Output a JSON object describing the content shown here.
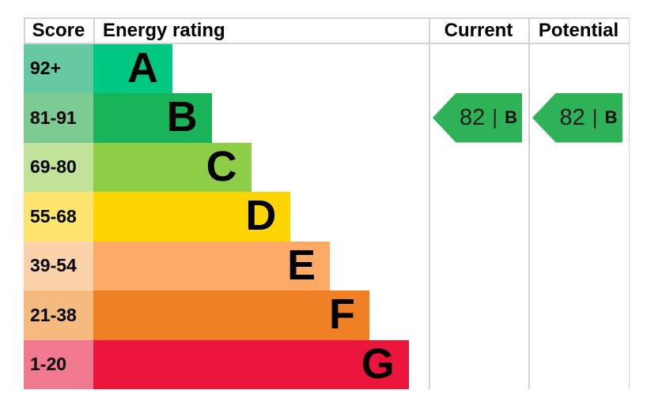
{
  "header": {
    "score": "Score",
    "energy_rating": "Energy rating",
    "current": "Current",
    "potential": "Potential"
  },
  "bands": [
    {
      "grade": "A",
      "score": "92+",
      "bar_color": "#00c781",
      "score_color": "#66c9a1"
    },
    {
      "grade": "B",
      "score": "81-91",
      "bar_color": "#19b459",
      "score_color": "#7ccb92"
    },
    {
      "grade": "C",
      "score": "69-80",
      "bar_color": "#8dce46",
      "score_color": "#c1e299"
    },
    {
      "grade": "D",
      "score": "55-68",
      "bar_color": "#ffd500",
      "score_color": "#fce46e"
    },
    {
      "grade": "E",
      "score": "39-54",
      "bar_color": "#fcaa65",
      "score_color": "#fcd2ab"
    },
    {
      "grade": "F",
      "score": "21-38",
      "bar_color": "#ef8023",
      "score_color": "#f5ba7d"
    },
    {
      "grade": "G",
      "score": "1-20",
      "bar_color": "#e9153b",
      "score_color": "#f1798f"
    }
  ],
  "current": {
    "value": "82",
    "separator": "|",
    "grade": "B",
    "arrow_color": "#2db258"
  },
  "potential": {
    "value": "82",
    "separator": "|",
    "grade": "B",
    "arrow_color": "#2db258"
  },
  "style": {
    "border_color": "#d2d2d2",
    "text_color": "#000000"
  },
  "chart_data": {
    "type": "bar",
    "title": "Energy rating",
    "categories": [
      "A",
      "B",
      "C",
      "D",
      "E",
      "F",
      "G"
    ],
    "band_score_ranges": {
      "A": "92+",
      "B": "81-91",
      "C": "69-80",
      "D": "55-68",
      "E": "39-54",
      "F": "21-38",
      "G": "1-20"
    },
    "band_colors": [
      "#00c781",
      "#19b459",
      "#8dce46",
      "#ffd500",
      "#fcaa65",
      "#ef8023",
      "#e9153b"
    ],
    "current_rating": {
      "score": 82,
      "grade": "B"
    },
    "potential_rating": {
      "score": 82,
      "grade": "B"
    },
    "legend_position": "none",
    "layout": "EPC stepped-band ladder; bar length increases by fixed step from A (shortest) to G (longest); current and potential shown as left-pointing green arrows aligned with band B"
  }
}
